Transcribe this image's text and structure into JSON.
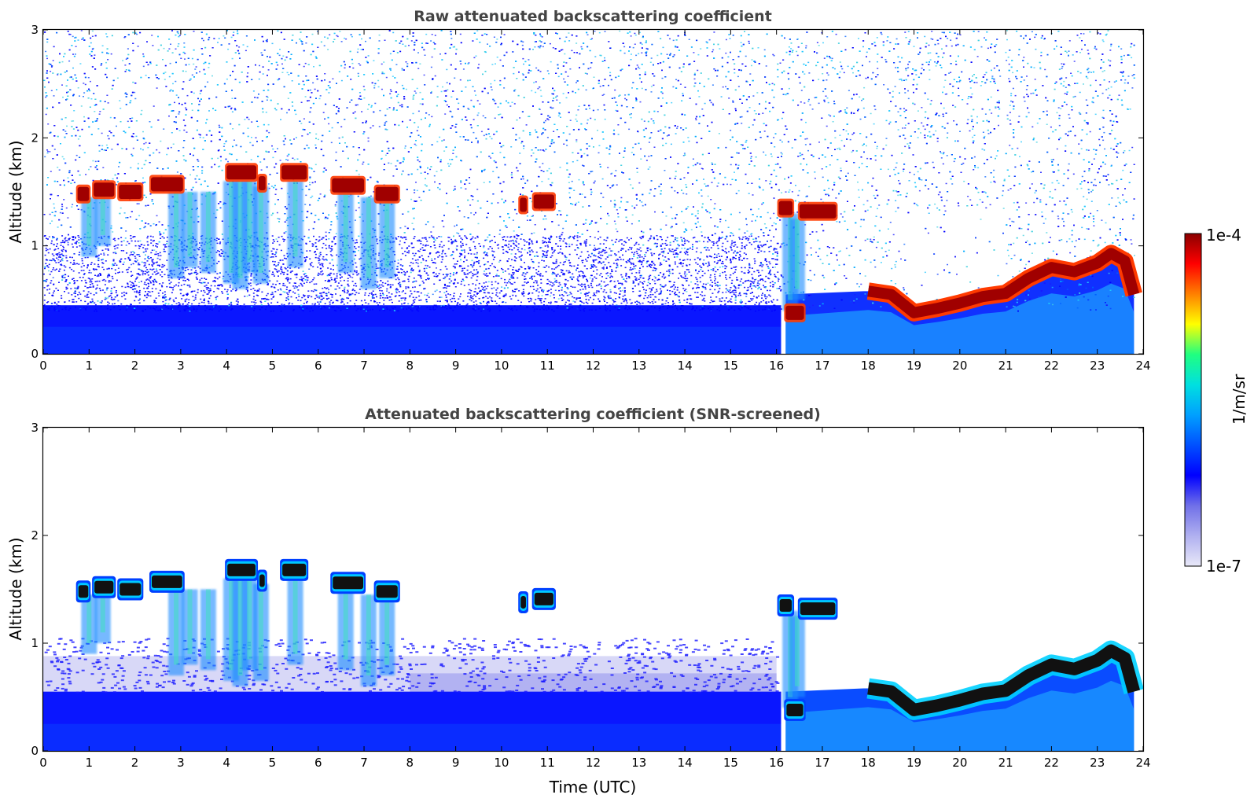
{
  "chart_data": [
    {
      "type": "heatmap",
      "title": "Raw attenuated backscattering coefficient",
      "xlabel": "",
      "ylabel": "Altitude (km)",
      "xlim": [
        0,
        24
      ],
      "ylim": [
        0,
        3
      ],
      "xticks": [
        "0",
        "1",
        "2",
        "3",
        "4",
        "5",
        "6",
        "7",
        "8",
        "9",
        "10",
        "11",
        "12",
        "13",
        "14",
        "15",
        "16",
        "17",
        "18",
        "19",
        "20",
        "21",
        "22",
        "23",
        "24"
      ],
      "yticks": [
        "0",
        "1",
        "2",
        "3"
      ],
      "color_scale": "log",
      "cloud_layers": [
        {
          "t_start": 0.75,
          "t_end": 1.0,
          "altitude_km": 1.48
        },
        {
          "t_start": 1.1,
          "t_end": 1.55,
          "altitude_km": 1.52
        },
        {
          "t_start": 1.65,
          "t_end": 2.15,
          "altitude_km": 1.5
        },
        {
          "t_start": 2.35,
          "t_end": 3.05,
          "altitude_km": 1.57
        },
        {
          "t_start": 4.0,
          "t_end": 4.65,
          "altitude_km": 1.68
        },
        {
          "t_start": 4.7,
          "t_end": 4.85,
          "altitude_km": 1.58
        },
        {
          "t_start": 5.2,
          "t_end": 5.75,
          "altitude_km": 1.68
        },
        {
          "t_start": 6.3,
          "t_end": 7.0,
          "altitude_km": 1.56
        },
        {
          "t_start": 7.25,
          "t_end": 7.75,
          "altitude_km": 1.48
        },
        {
          "t_start": 10.4,
          "t_end": 10.55,
          "altitude_km": 1.38
        },
        {
          "t_start": 10.7,
          "t_end": 11.15,
          "altitude_km": 1.41
        },
        {
          "t_start": 16.05,
          "t_end": 16.35,
          "altitude_km": 1.35
        },
        {
          "t_start": 16.5,
          "t_end": 17.3,
          "altitude_km": 1.32
        },
        {
          "t_start": 16.2,
          "t_end": 16.6,
          "altitude_km": 0.38
        }
      ],
      "boundary_layer_top": {
        "t": [
          18.0,
          18.5,
          19.0,
          19.5,
          20.0,
          20.5,
          21.0,
          21.5,
          22.0,
          22.5,
          23.0,
          23.3,
          23.6,
          23.8
        ],
        "altitude_km": [
          0.58,
          0.55,
          0.38,
          0.42,
          0.47,
          0.53,
          0.56,
          0.7,
          0.8,
          0.76,
          0.84,
          0.93,
          0.86,
          0.55
        ]
      }
    },
    {
      "type": "heatmap",
      "title": "Attenuated backscattering coefficient (SNR-screened)",
      "xlabel": "Time (UTC)",
      "ylabel": "Altitude (km)",
      "xlim": [
        0,
        24
      ],
      "ylim": [
        0,
        3
      ],
      "xticks": [
        "0",
        "1",
        "2",
        "3",
        "4",
        "5",
        "6",
        "7",
        "8",
        "9",
        "10",
        "11",
        "12",
        "13",
        "14",
        "15",
        "16",
        "17",
        "18",
        "19",
        "20",
        "21",
        "22",
        "23",
        "24"
      ],
      "yticks": [
        "0",
        "1",
        "2",
        "3"
      ],
      "color_scale": "log"
    }
  ],
  "colorbar": {
    "label": "1/m/sr",
    "max_label": "1e-4",
    "min_label": "1e-7",
    "colors": [
      "#e8e8f8",
      "#b0b0f0",
      "#7070e8",
      "#0000ff",
      "#0050ff",
      "#00a0ff",
      "#00e0e0",
      "#20ff80",
      "#ffff00",
      "#ff8000",
      "#ff0000",
      "#8b0000"
    ]
  }
}
